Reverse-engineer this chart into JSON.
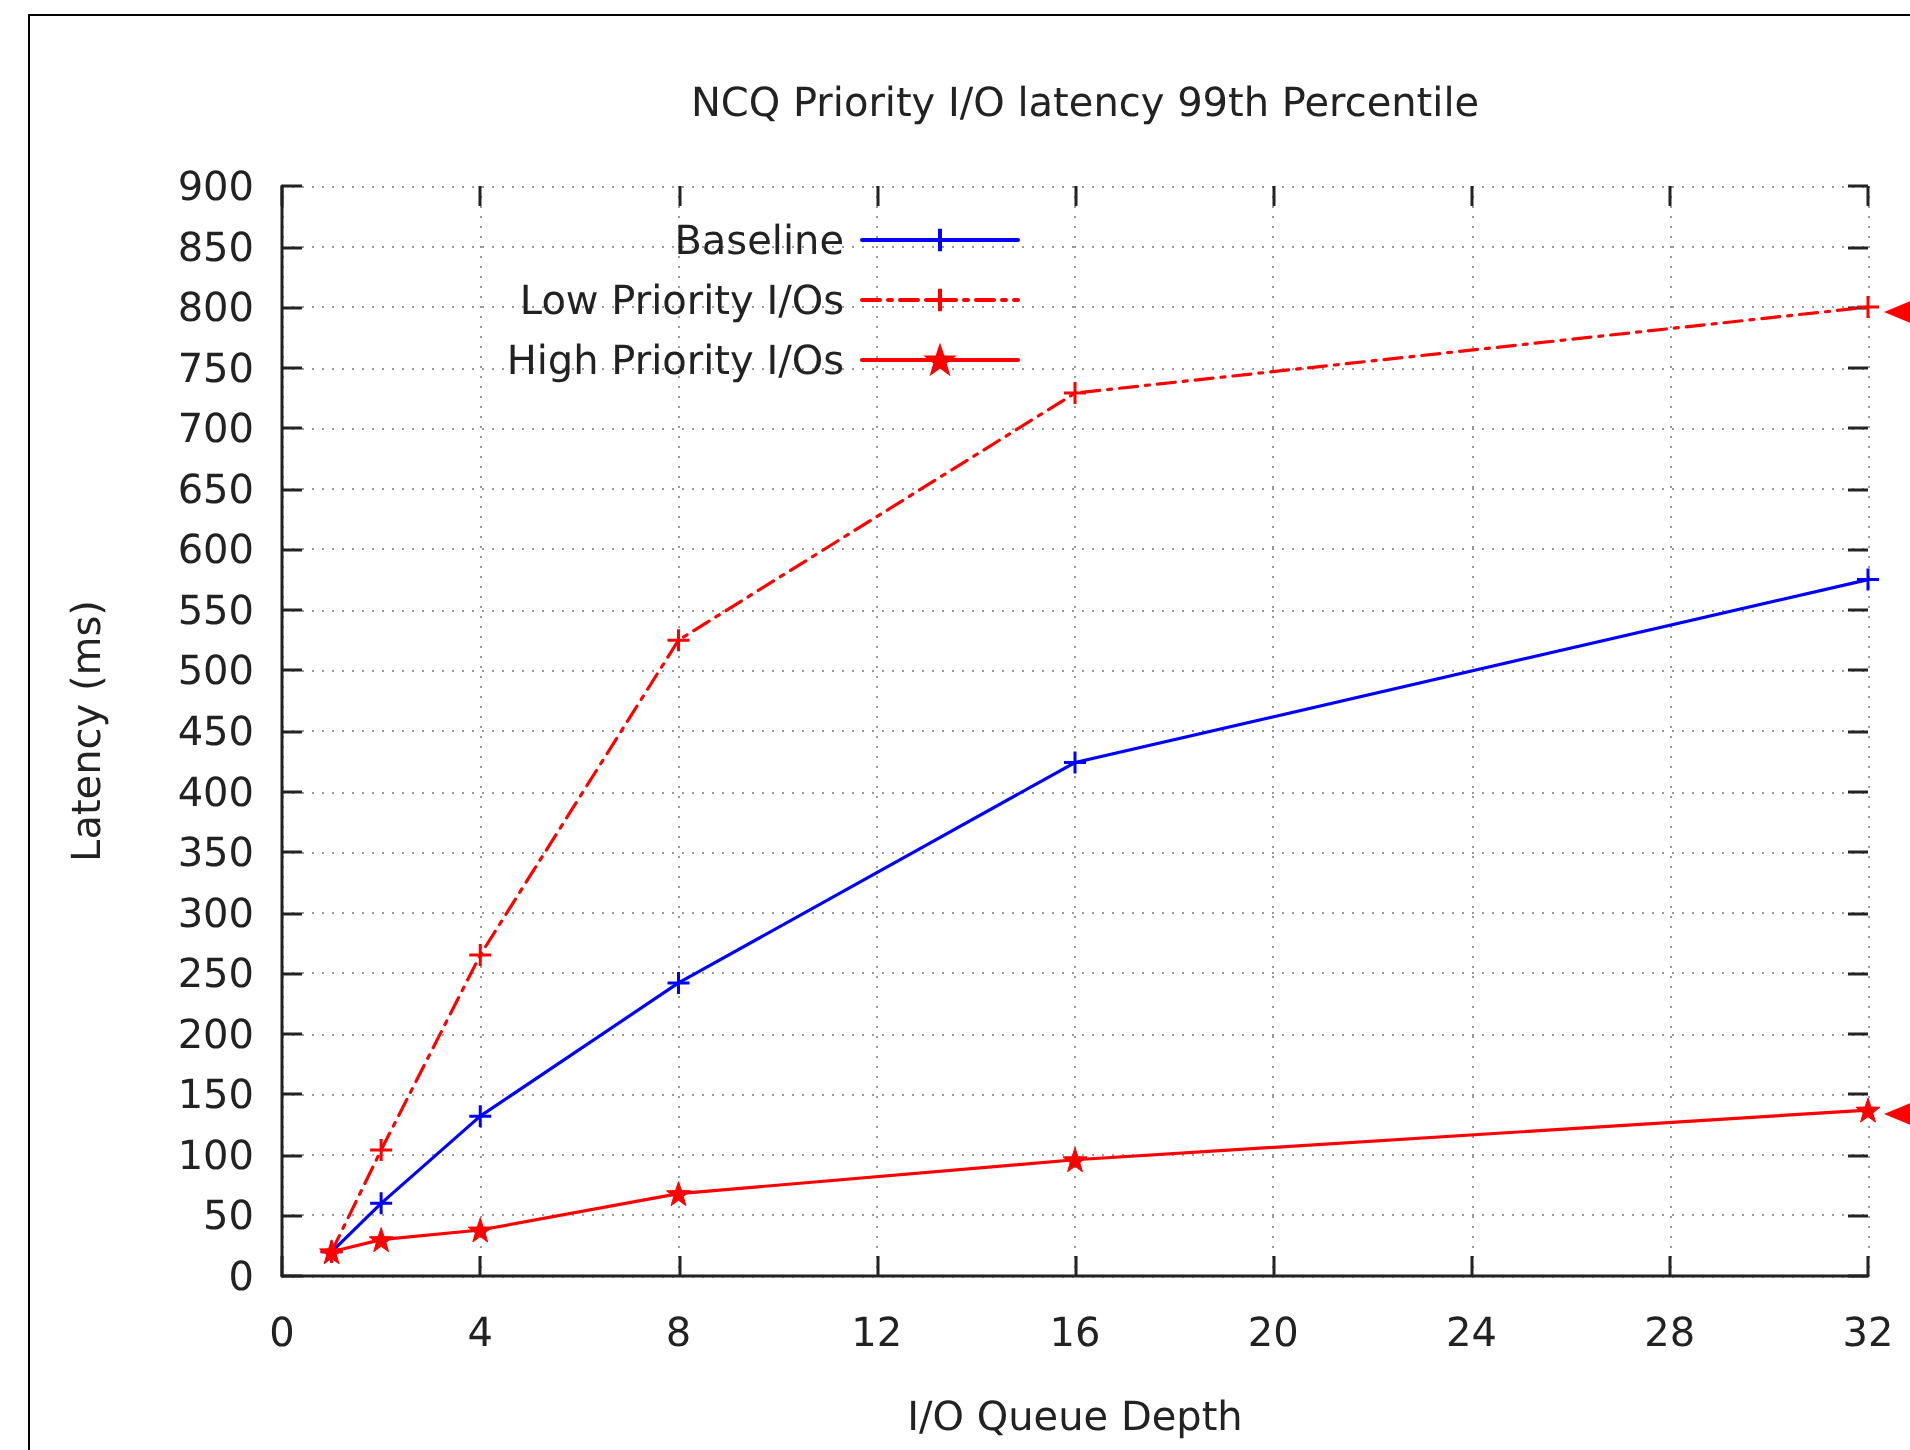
{
  "chart_data": {
    "type": "line",
    "title": "NCQ Priority I/O latency 99th Percentile",
    "xlabel": "I/O Queue Depth",
    "ylabel": "Latency (ms)",
    "x": [
      1,
      2,
      4,
      8,
      16,
      32
    ],
    "series": [
      {
        "name": "Baseline",
        "color": "#0000ff",
        "values": [
          20,
          60,
          132,
          242,
          424,
          575
        ],
        "marker": "cross",
        "line_style": "solid"
      },
      {
        "name": "Low Priority I/Os",
        "color": "#ff0000",
        "values": [
          20,
          104,
          265,
          525,
          729,
          800
        ],
        "marker": "cross",
        "line_style": "dashed"
      },
      {
        "name": "High Priority I/Os",
        "color": "#ff0000",
        "values": [
          20,
          30,
          38,
          68,
          96,
          137
        ],
        "marker": "star",
        "line_style": "solid"
      }
    ],
    "xlim": [
      0,
      32
    ],
    "xticks": [
      0,
      4,
      8,
      12,
      16,
      20,
      24,
      28,
      32
    ],
    "ylim": [
      0,
      900
    ],
    "yticks": [
      0,
      50,
      100,
      150,
      200,
      250,
      300,
      350,
      400,
      450,
      500,
      550,
      600,
      650,
      700,
      750,
      800,
      850,
      900
    ],
    "grid": true,
    "legend": "top left"
  }
}
